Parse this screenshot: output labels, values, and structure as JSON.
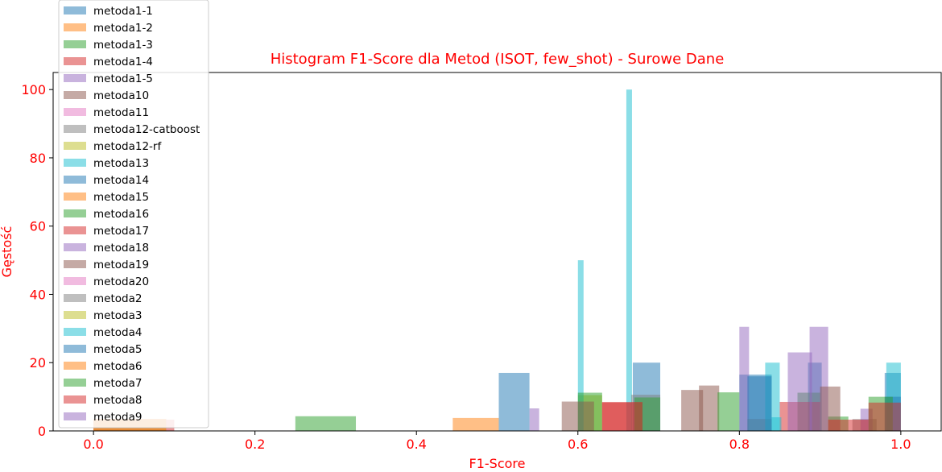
{
  "chart_data": {
    "type": "bar",
    "title": "Histogram F1-Score dla Metod (ISOT, few_shot) - Surowe Dane",
    "xlabel": "F1-Score",
    "ylabel": "Gęstość",
    "xlim": [
      -0.05,
      1.05
    ],
    "ylim": [
      0,
      105
    ],
    "xticks": [
      "0.0",
      "0.2",
      "0.4",
      "0.6",
      "0.8",
      "1.0"
    ],
    "yticks": [
      "0",
      "20",
      "40",
      "60",
      "80",
      "100"
    ],
    "grid": false,
    "legend_position": "top-left",
    "bar_opacity": 0.5,
    "series": [
      {
        "name": "metoda1-1",
        "color": "#1f77b4",
        "bins": [
          [
            0.502,
            0.54,
            17
          ],
          [
            0.668,
            0.702,
            20
          ],
          [
            0.8,
            0.84,
            16.5
          ],
          [
            0.885,
            0.902,
            20
          ],
          [
            0.98,
            1.0,
            17
          ]
        ]
      },
      {
        "name": "metoda1-2",
        "color": "#ff7f0e",
        "bins": [
          [
            0.0,
            0.09,
            3.5
          ]
        ]
      },
      {
        "name": "metoda1-3",
        "color": "#2ca02c",
        "bins": [
          [
            0.25,
            0.325,
            4.3
          ],
          [
            0.872,
            0.9,
            11.2
          ]
        ]
      },
      {
        "name": "metoda1-4",
        "color": "#d62728",
        "bins": [
          [
            0.0,
            0.1,
            3.3
          ],
          [
            0.85,
            0.9,
            8.5
          ]
        ]
      },
      {
        "name": "metoda1-5",
        "color": "#9467bd",
        "bins": [
          [
            0.8,
            0.812,
            30.5
          ],
          [
            0.86,
            0.89,
            23
          ]
        ]
      },
      {
        "name": "metoda10",
        "color": "#8c564b",
        "bins": [
          [
            0.728,
            0.755,
            12
          ],
          [
            0.75,
            0.775,
            13.3
          ]
        ]
      },
      {
        "name": "metoda11",
        "color": "#e377c2",
        "bins": [
          [
            0.0,
            0.09,
            3.5
          ]
        ]
      },
      {
        "name": "metoda12-catboost",
        "color": "#7f7f7f",
        "bins": [
          [
            0.81,
            0.84,
            3.5
          ],
          [
            0.94,
            0.97,
            3.5
          ]
        ]
      },
      {
        "name": "metoda12-rf",
        "color": "#bcbd22",
        "bins": [
          [
            0.6,
            0.63,
            10.5
          ]
        ]
      },
      {
        "name": "metoda13",
        "color": "#17becf",
        "bins": [
          [
            0.6,
            0.607,
            50
          ],
          [
            0.66,
            0.667,
            100
          ],
          [
            0.832,
            0.85,
            20
          ],
          [
            0.982,
            1.0,
            20
          ]
        ]
      },
      {
        "name": "metoda14",
        "color": "#1f77b4",
        "bins": [
          [
            0.98,
            1.0,
            10
          ]
        ]
      },
      {
        "name": "metoda15",
        "color": "#ff7f0e",
        "bins": [
          [
            0.445,
            0.502,
            3.8
          ]
        ]
      },
      {
        "name": "metoda16",
        "color": "#2ca02c",
        "bins": [
          [
            0.6,
            0.63,
            11.2
          ],
          [
            0.773,
            0.8,
            11.3
          ],
          [
            0.91,
            0.935,
            4.2
          ]
        ]
      },
      {
        "name": "metoda17",
        "color": "#d62728",
        "bins": [
          [
            0.63,
            0.68,
            8.3
          ]
        ]
      },
      {
        "name": "metoda18",
        "color": "#9467bd",
        "bins": [
          [
            0.887,
            0.91,
            30.5
          ],
          [
            0.95,
            0.965,
            6.5
          ]
        ]
      },
      {
        "name": "metoda19",
        "color": "#8c564b",
        "bins": [
          [
            0.58,
            0.62,
            8.6
          ],
          [
            0.9,
            0.925,
            13
          ]
        ]
      },
      {
        "name": "metoda20",
        "color": "#e377c2",
        "bins": [
          [
            0.0,
            0.09,
            3.3
          ]
        ]
      },
      {
        "name": "metoda2",
        "color": "#7f7f7f",
        "bins": [
          [
            0.666,
            0.702,
            10.6
          ]
        ]
      },
      {
        "name": "metoda3",
        "color": "#bcbd22",
        "bins": [
          [
            0.0,
            0.09,
            3.4
          ]
        ]
      },
      {
        "name": "metoda4",
        "color": "#17becf",
        "bins": [
          [
            0.84,
            0.852,
            4
          ]
        ]
      },
      {
        "name": "metoda5",
        "color": "#1f77b4",
        "bins": [
          [
            0.81,
            0.84,
            16
          ]
        ]
      },
      {
        "name": "metoda6",
        "color": "#ff7f0e",
        "bins": [
          [
            0.0,
            0.09,
            3.5
          ]
        ]
      },
      {
        "name": "metoda7",
        "color": "#2ca02c",
        "bins": [
          [
            0.67,
            0.702,
            9.8
          ],
          [
            0.96,
            0.99,
            10
          ]
        ]
      },
      {
        "name": "metoda8",
        "color": "#d62728",
        "bins": [
          [
            0.63,
            0.68,
            8.5
          ],
          [
            0.96,
            1.0,
            8.3
          ],
          [
            0.91,
            0.96,
            3.3
          ]
        ]
      },
      {
        "name": "metoda9",
        "color": "#9467bd",
        "bins": [
          [
            0.54,
            0.552,
            6.6
          ]
        ]
      }
    ]
  }
}
